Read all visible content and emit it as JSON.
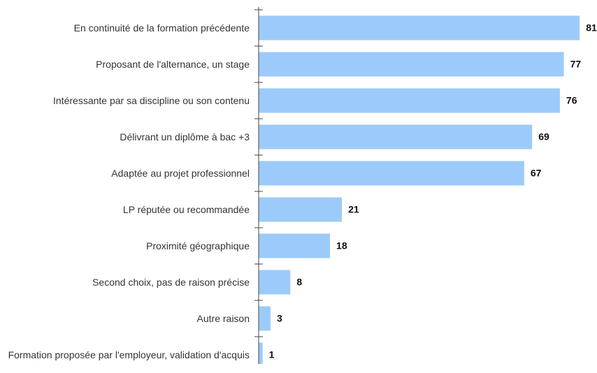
{
  "chart_data": {
    "type": "bar",
    "orientation": "horizontal",
    "color": "#9ccbfb",
    "categories": [
      "En continuité de la formation précédente",
      "Proposant de l'alternance, un stage",
      "Intéressante par sa discipline ou son contenu",
      "Délivrant un diplôme à bac +3",
      "Adaptée au projet professionnel",
      "LP réputée ou recommandée",
      "Proximité géographique",
      "Second choix, pas de raison précise",
      "Autre raison",
      "Formation proposée par l'employeur, validation d'acquis"
    ],
    "values": [
      81,
      77,
      76,
      69,
      67,
      21,
      18,
      8,
      3,
      1
    ]
  }
}
